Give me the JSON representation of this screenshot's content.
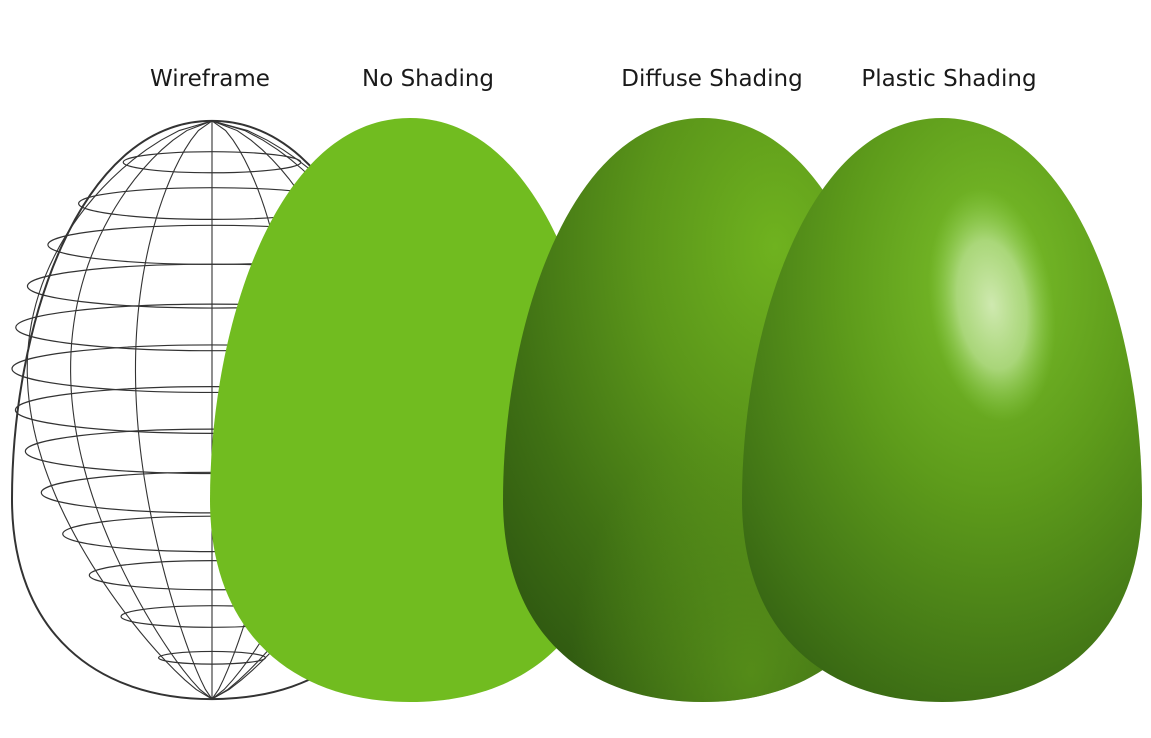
{
  "labels": {
    "wireframe": "Wireframe",
    "no_shading": "No Shading",
    "diffuse_shading": "Diffuse Shading",
    "plastic_shading": "Plastic Shading"
  },
  "colors": {
    "background": "#ffffff",
    "flat_green": "#71bc20",
    "diffuse_light": "#6fb21f",
    "diffuse_dark": "#2c5410",
    "plastic_highlight": "#c3e3a0",
    "wire_stroke": "#333333"
  }
}
